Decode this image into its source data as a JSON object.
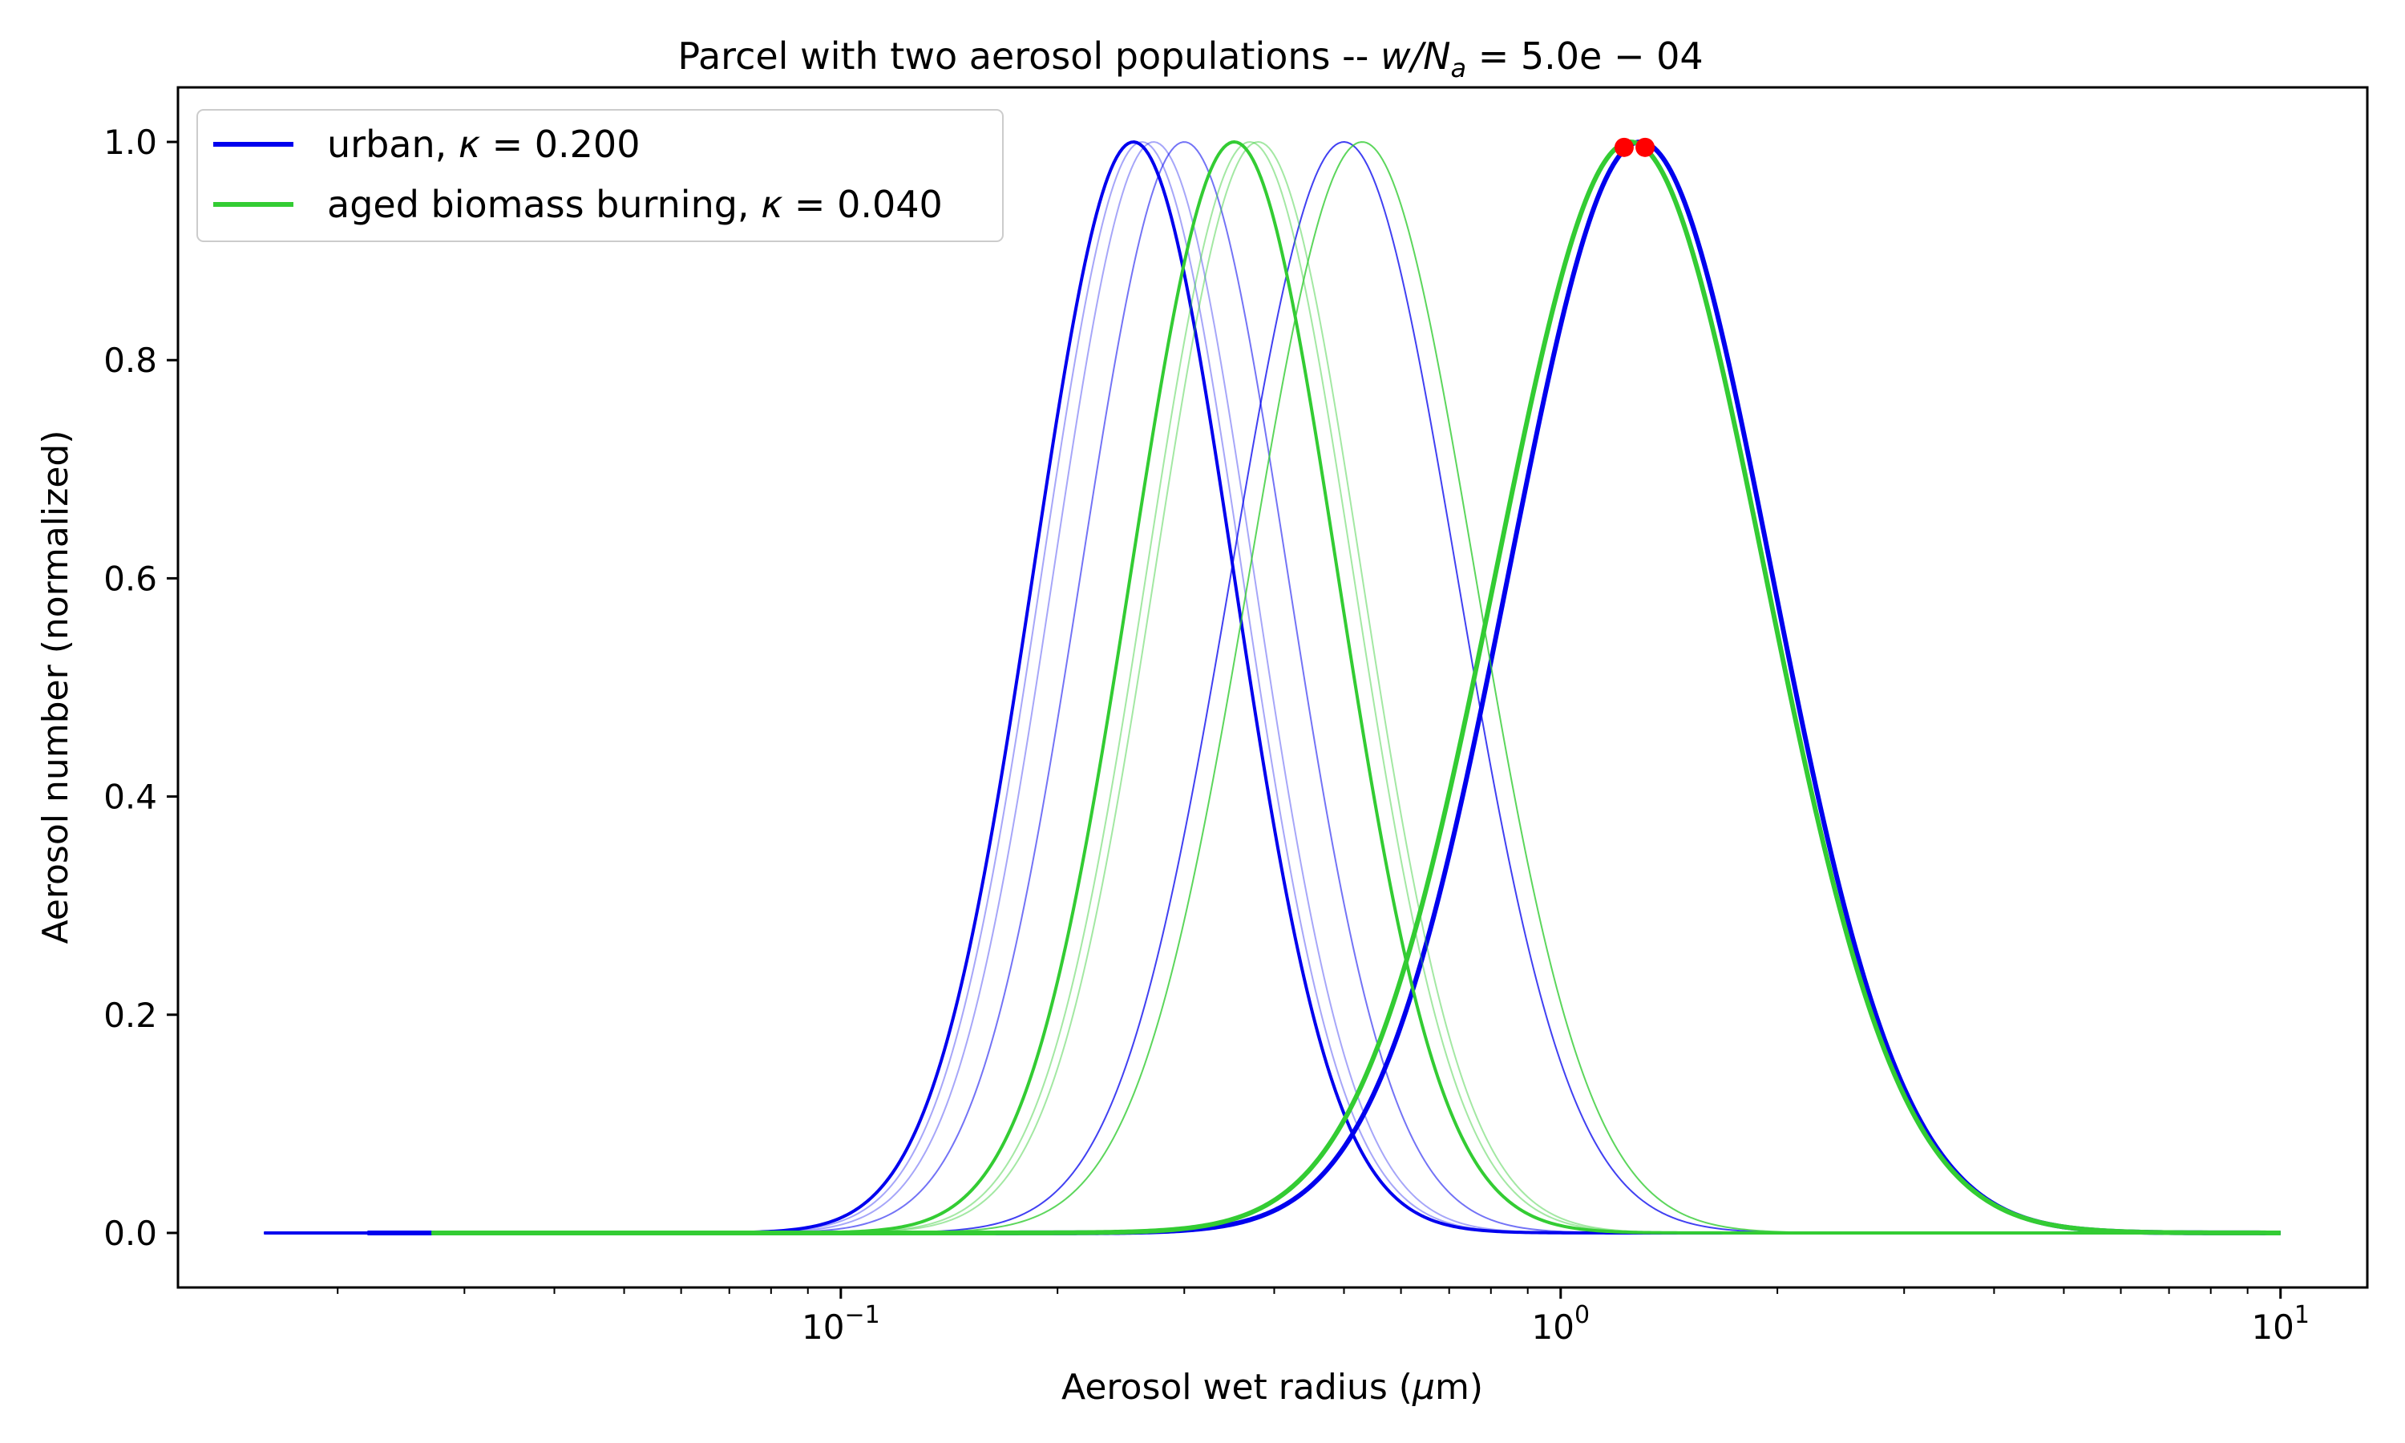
{
  "chart_data": {
    "type": "line",
    "title_main": "Parcel with two aerosol populations -- ",
    "title_math": "w/N",
    "title_sub": "a",
    "title_rest": " = 5.0e − 04",
    "xlabel_pre": "Aerosol wet radius (",
    "xlabel_mu": "μ",
    "xlabel_post": "m)",
    "ylabel": "Aerosol number (normalized)",
    "xscale": "log",
    "xlim": [
      0.012,
      13.2
    ],
    "ylim": [
      -0.05,
      1.05
    ],
    "grid": false,
    "legend_position": "top-left",
    "x_ticks": [
      {
        "value": 0.1,
        "base": "10",
        "exp": "−1"
      },
      {
        "value": 1,
        "base": "10",
        "exp": "0"
      },
      {
        "value": 10,
        "base": "10",
        "exp": "1"
      }
    ],
    "y_ticks": [
      {
        "value": 0.0,
        "label": "0.0"
      },
      {
        "value": 0.2,
        "label": "0.2"
      },
      {
        "value": 0.4,
        "label": "0.4"
      },
      {
        "value": 0.6,
        "label": "0.6"
      },
      {
        "value": 0.8,
        "label": "0.8"
      },
      {
        "value": 1.0,
        "label": "1.0"
      }
    ],
    "legend": [
      {
        "label_pre": "urban, ",
        "kappa": "κ",
        "label_post": " = 0.200",
        "color": "#0000ee"
      },
      {
        "label_pre": "aged biomass burning, ",
        "kappa": "κ",
        "label_post": " = 0.040",
        "color": "#33cc33"
      }
    ],
    "colors": {
      "urban": "#0000ee",
      "biomass": "#33cc33",
      "marker": "#ff0000"
    },
    "series": [
      {
        "population": "urban",
        "peak_radius": 0.255,
        "sigma_ln": 0.32,
        "x_start": 0.0158,
        "opacity": 1.0,
        "width": 4
      },
      {
        "population": "urban",
        "peak_radius": 0.262,
        "sigma_ln": 0.32,
        "x_start": 0.0158,
        "opacity": 0.35,
        "width": 2
      },
      {
        "population": "urban",
        "peak_radius": 0.272,
        "sigma_ln": 0.32,
        "x_start": 0.0158,
        "opacity": 0.35,
        "width": 2
      },
      {
        "population": "urban",
        "peak_radius": 0.3,
        "sigma_ln": 0.33,
        "x_start": 0.0158,
        "opacity": 0.55,
        "width": 2
      },
      {
        "population": "urban",
        "peak_radius": 0.5,
        "sigma_ln": 0.36,
        "x_start": 0.0158,
        "opacity": 0.75,
        "width": 2
      },
      {
        "population": "urban",
        "peak_radius": 1.29,
        "sigma_ln": 0.42,
        "x_start": 0.022,
        "opacity": 1.0,
        "width": 6
      },
      {
        "population": "biomass",
        "peak_radius": 0.352,
        "sigma_ln": 0.33,
        "x_start": 0.027,
        "opacity": 1.0,
        "width": 4
      },
      {
        "population": "biomass",
        "peak_radius": 0.37,
        "sigma_ln": 0.33,
        "x_start": 0.027,
        "opacity": 0.45,
        "width": 2
      },
      {
        "population": "biomass",
        "peak_radius": 0.38,
        "sigma_ln": 0.33,
        "x_start": 0.027,
        "opacity": 0.45,
        "width": 2
      },
      {
        "population": "biomass",
        "peak_radius": 0.53,
        "sigma_ln": 0.36,
        "x_start": 0.027,
        "opacity": 0.8,
        "width": 2
      },
      {
        "population": "biomass",
        "peak_radius": 1.25,
        "sigma_ln": 0.43,
        "x_start": 0.027,
        "opacity": 1.0,
        "width": 6
      }
    ],
    "markers": [
      {
        "x": 1.225,
        "y": 0.995
      },
      {
        "x": 1.31,
        "y": 0.995
      }
    ]
  }
}
